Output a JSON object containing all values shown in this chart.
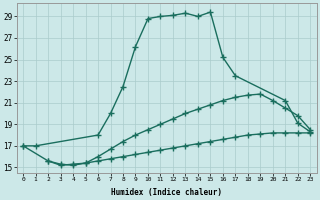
{
  "xlabel": "Humidex (Indice chaleur)",
  "background_color": "#cce8e8",
  "grid_color": "#aacccc",
  "line_color": "#1a6e5e",
  "xlim": [
    -0.5,
    23.5
  ],
  "ylim": [
    14.5,
    30.2
  ],
  "yticks": [
    15,
    17,
    19,
    21,
    23,
    25,
    27,
    29
  ],
  "xticks": [
    0,
    1,
    2,
    3,
    4,
    5,
    6,
    7,
    8,
    9,
    10,
    11,
    12,
    13,
    14,
    15,
    16,
    17,
    18,
    19,
    20,
    21,
    22,
    23
  ],
  "series": [
    {
      "x": [
        0,
        1,
        6,
        7,
        8,
        9,
        10,
        11,
        12,
        13,
        14,
        15,
        16,
        17,
        21,
        22,
        23
      ],
      "y": [
        17,
        17,
        18,
        20,
        22.5,
        26.2,
        28.8,
        29.0,
        29.1,
        29.3,
        29.0,
        29.4,
        25.2,
        23.5,
        21.2,
        19.1,
        18.3
      ],
      "marker": "+",
      "markersize": 4,
      "linewidth": 1.0
    },
    {
      "x": [
        0,
        2,
        3,
        4,
        5,
        6,
        7,
        8,
        9,
        10,
        11,
        12,
        13,
        14,
        15,
        16,
        17,
        18,
        19,
        20,
        21,
        22,
        23
      ],
      "y": [
        17,
        15.6,
        15.3,
        15.2,
        15.4,
        16.0,
        16.7,
        17.4,
        18.0,
        18.5,
        19.0,
        19.5,
        20.0,
        20.4,
        20.8,
        21.2,
        21.5,
        21.7,
        21.8,
        21.2,
        20.5,
        19.8,
        18.5
      ],
      "marker": "+",
      "markersize": 4,
      "linewidth": 1.0
    },
    {
      "x": [
        2,
        3,
        4,
        5,
        6,
        7,
        8,
        9,
        10,
        11,
        12,
        13,
        14,
        15,
        16,
        17,
        18,
        19,
        20,
        21,
        22,
        23
      ],
      "y": [
        15.6,
        15.2,
        15.3,
        15.4,
        15.6,
        15.8,
        16.0,
        16.2,
        16.4,
        16.6,
        16.8,
        17.0,
        17.2,
        17.4,
        17.6,
        17.8,
        18.0,
        18.1,
        18.2,
        18.2,
        18.2,
        18.2
      ],
      "marker": "+",
      "markersize": 4,
      "linewidth": 1.0
    }
  ]
}
